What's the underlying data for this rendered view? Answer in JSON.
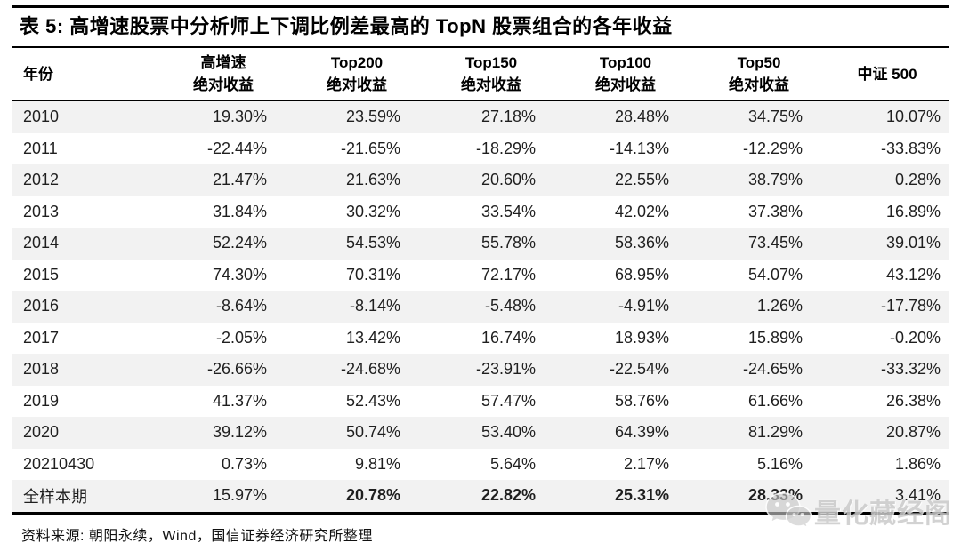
{
  "page": {
    "title": "表 5: 高增速股票中分析师上下调比例差最高的 TopN 股票组合的各年收益",
    "footer": "资料来源: 朝阳永续，Wind，国信证券经济研究所整理"
  },
  "table": {
    "columns": [
      {
        "key": "year",
        "line1": "年份",
        "line2": ""
      },
      {
        "key": "high-growth",
        "line1": "高增速",
        "line2": "绝对收益"
      },
      {
        "key": "top200",
        "line1": "Top200",
        "line2": "绝对收益"
      },
      {
        "key": "top150",
        "line1": "Top150",
        "line2": "绝对收益"
      },
      {
        "key": "top100",
        "line1": "Top100",
        "line2": "绝对收益"
      },
      {
        "key": "top50",
        "line1": "Top50",
        "line2": "绝对收益"
      },
      {
        "key": "csi500",
        "line1": "中证 500",
        "line2": ""
      }
    ],
    "rows": [
      {
        "year": "2010",
        "values": [
          "19.30%",
          "23.59%",
          "27.18%",
          "28.48%",
          "34.75%",
          "10.07%"
        ],
        "bold_indices": []
      },
      {
        "year": "2011",
        "values": [
          "-22.44%",
          "-21.65%",
          "-18.29%",
          "-14.13%",
          "-12.29%",
          "-33.83%"
        ],
        "bold_indices": []
      },
      {
        "year": "2012",
        "values": [
          "21.47%",
          "21.63%",
          "20.60%",
          "22.55%",
          "38.79%",
          "0.28%"
        ],
        "bold_indices": []
      },
      {
        "year": "2013",
        "values": [
          "31.84%",
          "30.32%",
          "33.54%",
          "42.02%",
          "37.38%",
          "16.89%"
        ],
        "bold_indices": []
      },
      {
        "year": "2014",
        "values": [
          "52.24%",
          "54.53%",
          "55.78%",
          "58.36%",
          "73.45%",
          "39.01%"
        ],
        "bold_indices": []
      },
      {
        "year": "2015",
        "values": [
          "74.30%",
          "70.31%",
          "72.17%",
          "68.95%",
          "54.07%",
          "43.12%"
        ],
        "bold_indices": []
      },
      {
        "year": "2016",
        "values": [
          "-8.64%",
          "-8.14%",
          "-5.48%",
          "-4.91%",
          "1.26%",
          "-17.78%"
        ],
        "bold_indices": []
      },
      {
        "year": "2017",
        "values": [
          "-2.05%",
          "13.42%",
          "16.74%",
          "18.93%",
          "15.89%",
          "-0.20%"
        ],
        "bold_indices": []
      },
      {
        "year": "2018",
        "values": [
          "-26.66%",
          "-24.68%",
          "-23.91%",
          "-22.54%",
          "-24.65%",
          "-33.32%"
        ],
        "bold_indices": []
      },
      {
        "year": "2019",
        "values": [
          "41.37%",
          "52.43%",
          "57.47%",
          "58.76%",
          "61.66%",
          "26.38%"
        ],
        "bold_indices": []
      },
      {
        "year": "2020",
        "values": [
          "39.12%",
          "50.74%",
          "53.40%",
          "64.39%",
          "81.29%",
          "20.87%"
        ],
        "bold_indices": []
      },
      {
        "year": "20210430",
        "values": [
          "0.73%",
          "9.81%",
          "5.64%",
          "2.17%",
          "5.16%",
          "1.86%"
        ],
        "bold_indices": []
      },
      {
        "year": "全样本期",
        "values": [
          "15.97%",
          "20.78%",
          "22.82%",
          "25.31%",
          "28.33%",
          "3.41%"
        ],
        "bold_indices": [
          1,
          2,
          3,
          4
        ]
      }
    ]
  },
  "watermark": {
    "text": "量化藏经阁",
    "icon": "wechat-icon"
  },
  "colors": {
    "stripe": "#f2f2f2",
    "rule": "#000000",
    "text": "#000000",
    "watermark": "#bababa"
  }
}
